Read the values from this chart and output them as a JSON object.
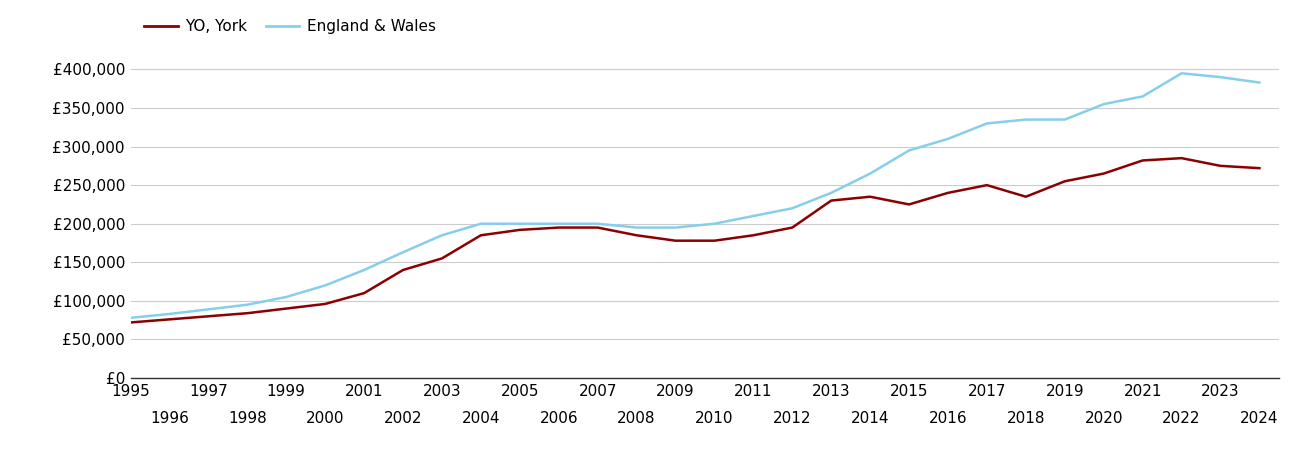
{
  "york_color": "#8B0000",
  "ew_color": "#87CEEB",
  "background_color": "#ffffff",
  "grid_color": "#cccccc",
  "legend_labels": [
    "YO, York",
    "England & Wales"
  ],
  "years": [
    1995,
    1996,
    1997,
    1998,
    1999,
    2000,
    2001,
    2002,
    2003,
    2004,
    2005,
    2006,
    2007,
    2008,
    2009,
    2010,
    2011,
    2012,
    2013,
    2014,
    2015,
    2016,
    2017,
    2018,
    2019,
    2020,
    2021,
    2022,
    2023,
    2024
  ],
  "york_values": [
    72000,
    76000,
    80000,
    84000,
    90000,
    96000,
    110000,
    140000,
    155000,
    185000,
    192000,
    195000,
    195000,
    185000,
    178000,
    178000,
    185000,
    195000,
    230000,
    235000,
    225000,
    240000,
    250000,
    235000,
    255000,
    265000,
    282000,
    285000,
    275000,
    272000
  ],
  "ew_values": [
    78000,
    83000,
    89000,
    95000,
    105000,
    120000,
    140000,
    163000,
    185000,
    200000,
    200000,
    200000,
    200000,
    195000,
    195000,
    200000,
    210000,
    220000,
    240000,
    265000,
    295000,
    310000,
    330000,
    335000,
    335000,
    355000,
    365000,
    395000,
    390000,
    383000
  ],
  "ylim": [
    0,
    420000
  ],
  "yticks": [
    0,
    50000,
    100000,
    150000,
    200000,
    250000,
    300000,
    350000,
    400000
  ],
  "line_width": 1.8,
  "tick_fontsize": 11,
  "legend_fontsize": 11
}
